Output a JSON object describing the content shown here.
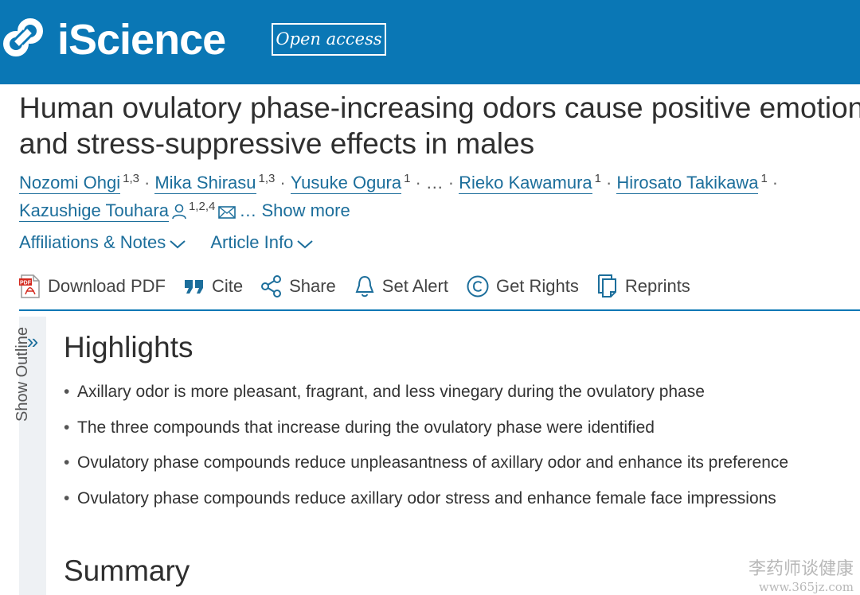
{
  "header": {
    "brand": "iScience",
    "open_access": "Open access"
  },
  "article": {
    "title_line1": "Human ovulatory phase-increasing odors cause positive emotions",
    "title_line2": "and stress-suppressive effects in males"
  },
  "authors": [
    {
      "name": "Nozomi Ohgi",
      "sup": "1,3"
    },
    {
      "name": "Mika Shirasu",
      "sup": "1,3"
    },
    {
      "name": "Yusuke Ogura",
      "sup": "1"
    },
    {
      "name": "Rieko Kawamura",
      "sup": "1"
    },
    {
      "name": "Hirosato Takikawa",
      "sup": "1"
    },
    {
      "name": "Kazushige Touhara",
      "sup": "1,2,4"
    }
  ],
  "authors_ellipsis": "…",
  "show_more": "… Show more",
  "toggles": {
    "affiliations": "Affiliations & Notes",
    "article_info": "Article Info"
  },
  "toolbar": {
    "download_pdf": "Download PDF",
    "cite": "Cite",
    "share": "Share",
    "set_alert": "Set Alert",
    "get_rights": "Get Rights",
    "reprints": "Reprints"
  },
  "outline": {
    "label": "Show Outline",
    "chevron": "»"
  },
  "highlights": {
    "heading": "Highlights",
    "items": [
      "Axillary odor is more pleasant, fragrant, and less vinegary during the ovulatory phase",
      "The three compounds that increase during the ovulatory phase were identified",
      "Ovulatory phase compounds reduce unpleasantness of axillary odor and enhance its preference",
      "Ovulatory phase compounds reduce axillary odor stress and enhance female face impressions"
    ]
  },
  "summary": {
    "heading": "Summary"
  },
  "watermark": {
    "text": "李药师谈健康",
    "url": "www.365jz.com"
  },
  "colors": {
    "brand_blue": "#0a77b5",
    "link_blue": "#1c6e9b",
    "pdf_red": "#d42a1f"
  }
}
